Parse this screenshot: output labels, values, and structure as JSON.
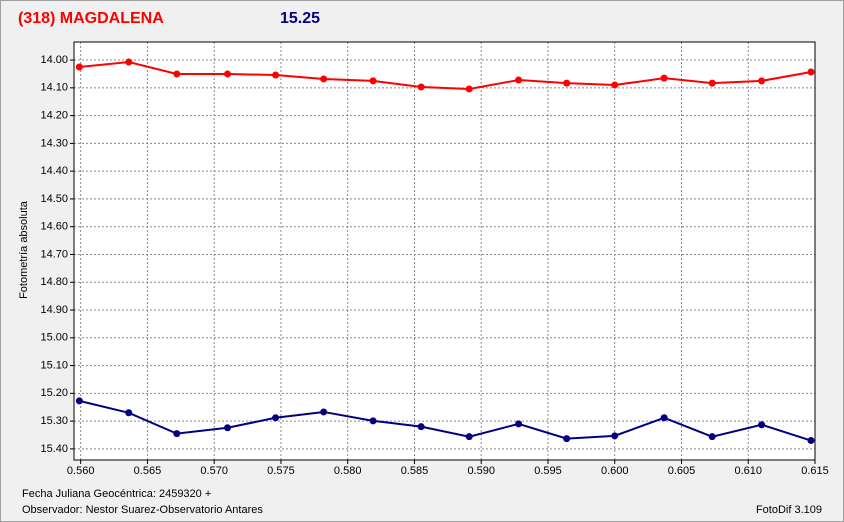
{
  "chart_data": {
    "type": "line",
    "title": "(318) MAGDALENA",
    "annotation": "15.25",
    "ylabel": "Fotometría absoluta",
    "notes": [
      "Fecha Juliana Geocéntrica: 2459320 +",
      "Observador: Nestor Suarez-Observatorio Antares",
      "FotoDif 3.109"
    ],
    "x": [
      0.5599,
      0.5636,
      0.5672,
      0.571,
      0.5746,
      0.5782,
      0.5819,
      0.5855,
      0.5891,
      0.5928,
      0.5964,
      0.6,
      0.6037,
      0.6073,
      0.611,
      0.6147
    ],
    "series": [
      {
        "color": "#ff0000",
        "values": [
          14.025,
          14.007,
          14.05,
          14.05,
          14.054,
          14.068,
          14.075,
          14.097,
          14.104,
          14.072,
          14.083,
          14.09,
          14.065,
          14.083,
          14.075,
          14.043
        ]
      },
      {
        "color": "#000080",
        "values": [
          15.227,
          15.27,
          15.345,
          15.324,
          15.288,
          15.267,
          15.299,
          15.32,
          15.356,
          15.31,
          15.363,
          15.353,
          15.288,
          15.356,
          15.313,
          15.37
        ]
      }
    ],
    "xlim": [
      0.5595,
      0.615
    ],
    "ylim": [
      13.935,
      15.44
    ],
    "y_inverted": true,
    "grid": true,
    "xticks": [
      {
        "value": 0.56,
        "label": "0.560"
      },
      {
        "value": 0.565,
        "label": "0.565"
      },
      {
        "value": 0.57,
        "label": "0.570"
      },
      {
        "value": 0.575,
        "label": "0.575"
      },
      {
        "value": 0.58,
        "label": "0.580"
      },
      {
        "value": 0.585,
        "label": "0.585"
      },
      {
        "value": 0.59,
        "label": "0.590"
      },
      {
        "value": 0.595,
        "label": "0.595"
      },
      {
        "value": 0.6,
        "label": "0.600"
      },
      {
        "value": 0.605,
        "label": "0.605"
      },
      {
        "value": 0.61,
        "label": "0.610"
      },
      {
        "value": 0.615,
        "label": "0.615"
      }
    ],
    "yticks": [
      {
        "value": 14.0,
        "label": "14.00"
      },
      {
        "value": 14.1,
        "label": "14.10"
      },
      {
        "value": 14.2,
        "label": "14.20"
      },
      {
        "value": 14.3,
        "label": "14.30"
      },
      {
        "value": 14.4,
        "label": "14.40"
      },
      {
        "value": 14.5,
        "label": "14.50"
      },
      {
        "value": 14.6,
        "label": "14.60"
      },
      {
        "value": 14.7,
        "label": "14.70"
      },
      {
        "value": 14.8,
        "label": "14.80"
      },
      {
        "value": 14.9,
        "label": "14.90"
      },
      {
        "value": 15.0,
        "label": "15.00"
      },
      {
        "value": 15.1,
        "label": "15.10"
      },
      {
        "value": 15.2,
        "label": "15.20"
      },
      {
        "value": 15.3,
        "label": "15.30"
      },
      {
        "value": 15.4,
        "label": "15.40"
      }
    ]
  }
}
